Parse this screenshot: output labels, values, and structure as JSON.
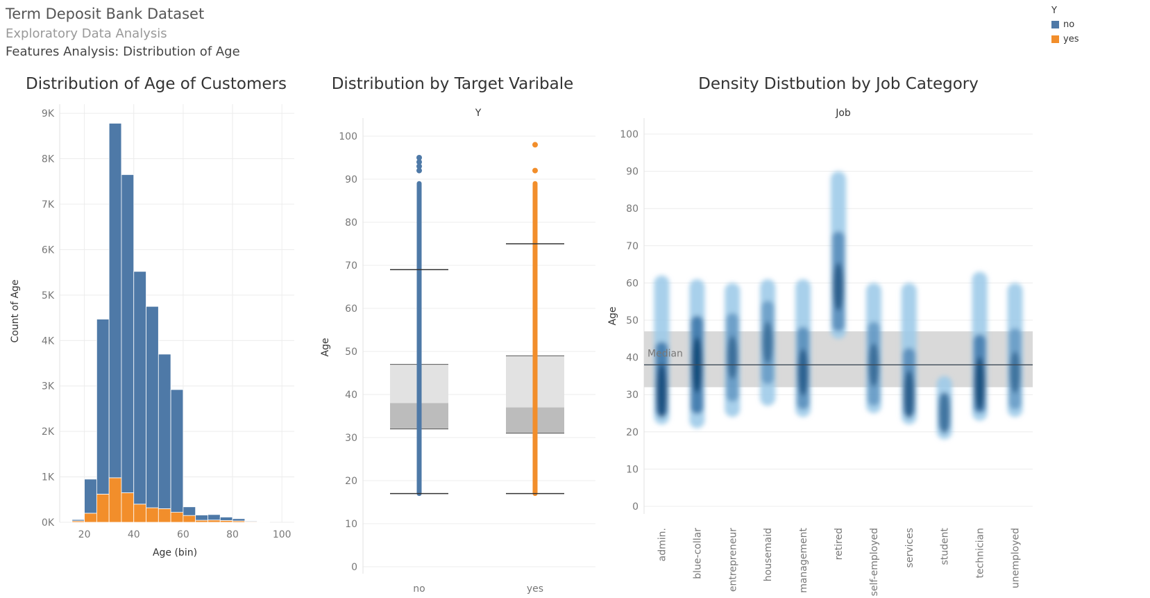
{
  "header": {
    "title": "Term Deposit Bank Dataset",
    "subtitle": "Exploratory Data Analysis",
    "section": "Features Analysis: Distribution of Age"
  },
  "legend": {
    "title": "Y",
    "items": [
      {
        "label": "no",
        "color": "#4e79a7"
      },
      {
        "label": "yes",
        "color": "#f28e2b"
      }
    ]
  },
  "chart_data": [
    {
      "type": "bar",
      "stacked": true,
      "title": "Distribution of Age of Customers",
      "xlabel": "Age (bin)",
      "ylabel": "Count of Age",
      "xlim": [
        10,
        105
      ],
      "ylim": [
        0,
        9200
      ],
      "x_ticks": [
        20,
        40,
        60,
        80,
        100
      ],
      "y_ticks": [
        {
          "value": 0,
          "label": "0K"
        },
        {
          "value": 1000,
          "label": "1K"
        },
        {
          "value": 2000,
          "label": "2K"
        },
        {
          "value": 3000,
          "label": "3K"
        },
        {
          "value": 4000,
          "label": "4K"
        },
        {
          "value": 5000,
          "label": "5K"
        },
        {
          "value": 6000,
          "label": "6K"
        },
        {
          "value": 7000,
          "label": "7K"
        },
        {
          "value": 8000,
          "label": "8K"
        },
        {
          "value": 9000,
          "label": "9K"
        }
      ],
      "bin_width": 5,
      "categories": [
        15,
        20,
        25,
        30,
        35,
        40,
        45,
        50,
        55,
        60,
        65,
        70,
        75,
        80,
        85,
        90
      ],
      "series": [
        {
          "name": "no",
          "color": "#4e79a7",
          "values": [
            30,
            750,
            3850,
            7800,
            7000,
            5120,
            4430,
            3400,
            2700,
            190,
            115,
            120,
            75,
            50,
            15,
            5
          ]
        },
        {
          "name": "yes",
          "color": "#f28e2b",
          "values": [
            30,
            200,
            620,
            980,
            650,
            400,
            320,
            300,
            220,
            150,
            45,
            50,
            40,
            30,
            15,
            5
          ]
        }
      ],
      "grid": true
    },
    {
      "type": "boxplot",
      "title": "Distribution by Target Varibale",
      "column_header": "Y",
      "ylabel": "Age",
      "ylim": [
        0,
        100
      ],
      "y_ticks": [
        0,
        10,
        20,
        30,
        40,
        50,
        60,
        70,
        80,
        90,
        100
      ],
      "groups": [
        {
          "name": "no",
          "color": "#4e79a7",
          "whisker_low": 17,
          "q1": 32,
          "median": 38,
          "q3": 47,
          "whisker_high": 69,
          "points_min": 17,
          "points_max": 89,
          "outliers": [
            92,
            93,
            94,
            95
          ]
        },
        {
          "name": "yes",
          "color": "#f28e2b",
          "whisker_low": 17,
          "q1": 31,
          "median": 37,
          "q3": 49,
          "whisker_high": 75,
          "points_min": 17,
          "points_max": 89,
          "outliers": [
            92,
            98
          ]
        }
      ],
      "grid": true
    },
    {
      "type": "density",
      "title": "Density Distbution by Job Category",
      "column_header": "Job",
      "ylabel": "Age",
      "ylim": [
        0,
        100
      ],
      "y_ticks": [
        0,
        10,
        20,
        30,
        40,
        50,
        60,
        70,
        80,
        90,
        100
      ],
      "reference_band": [
        32,
        47
      ],
      "median": 38,
      "median_label": "Median",
      "categories": [
        "admin.",
        "blue-collar",
        "entrepreneur",
        "housemaid",
        "management",
        "retired",
        "self-employed",
        "services",
        "student",
        "technician",
        "unemployed"
      ],
      "density": [
        {
          "job": "admin.",
          "low": 22,
          "high": 62,
          "peak": 31,
          "strength": 0.95
        },
        {
          "job": "blue-collar",
          "low": 21,
          "high": 61,
          "peak": 38,
          "strength": 1.0
        },
        {
          "job": "entrepreneur",
          "low": 24,
          "high": 60,
          "peak": 40,
          "strength": 0.5
        },
        {
          "job": "housemaid",
          "low": 27,
          "high": 61,
          "peak": 44,
          "strength": 0.45
        },
        {
          "job": "management",
          "low": 24,
          "high": 61,
          "peak": 36,
          "strength": 0.65
        },
        {
          "job": "retired",
          "low": 45,
          "high": 90,
          "peak": 59,
          "strength": 0.7
        },
        {
          "job": "self-employed",
          "low": 25,
          "high": 60,
          "peak": 38,
          "strength": 0.5
        },
        {
          "job": "services",
          "low": 22,
          "high": 60,
          "peak": 30,
          "strength": 0.7
        },
        {
          "job": "student",
          "low": 18,
          "high": 35,
          "peak": 25,
          "strength": 0.45
        },
        {
          "job": "technician",
          "low": 23,
          "high": 63,
          "peak": 33,
          "strength": 0.9
        },
        {
          "job": "unemployed",
          "low": 24,
          "high": 60,
          "peak": 36,
          "strength": 0.45
        }
      ],
      "color": "#1f5f99",
      "grid": true
    }
  ]
}
